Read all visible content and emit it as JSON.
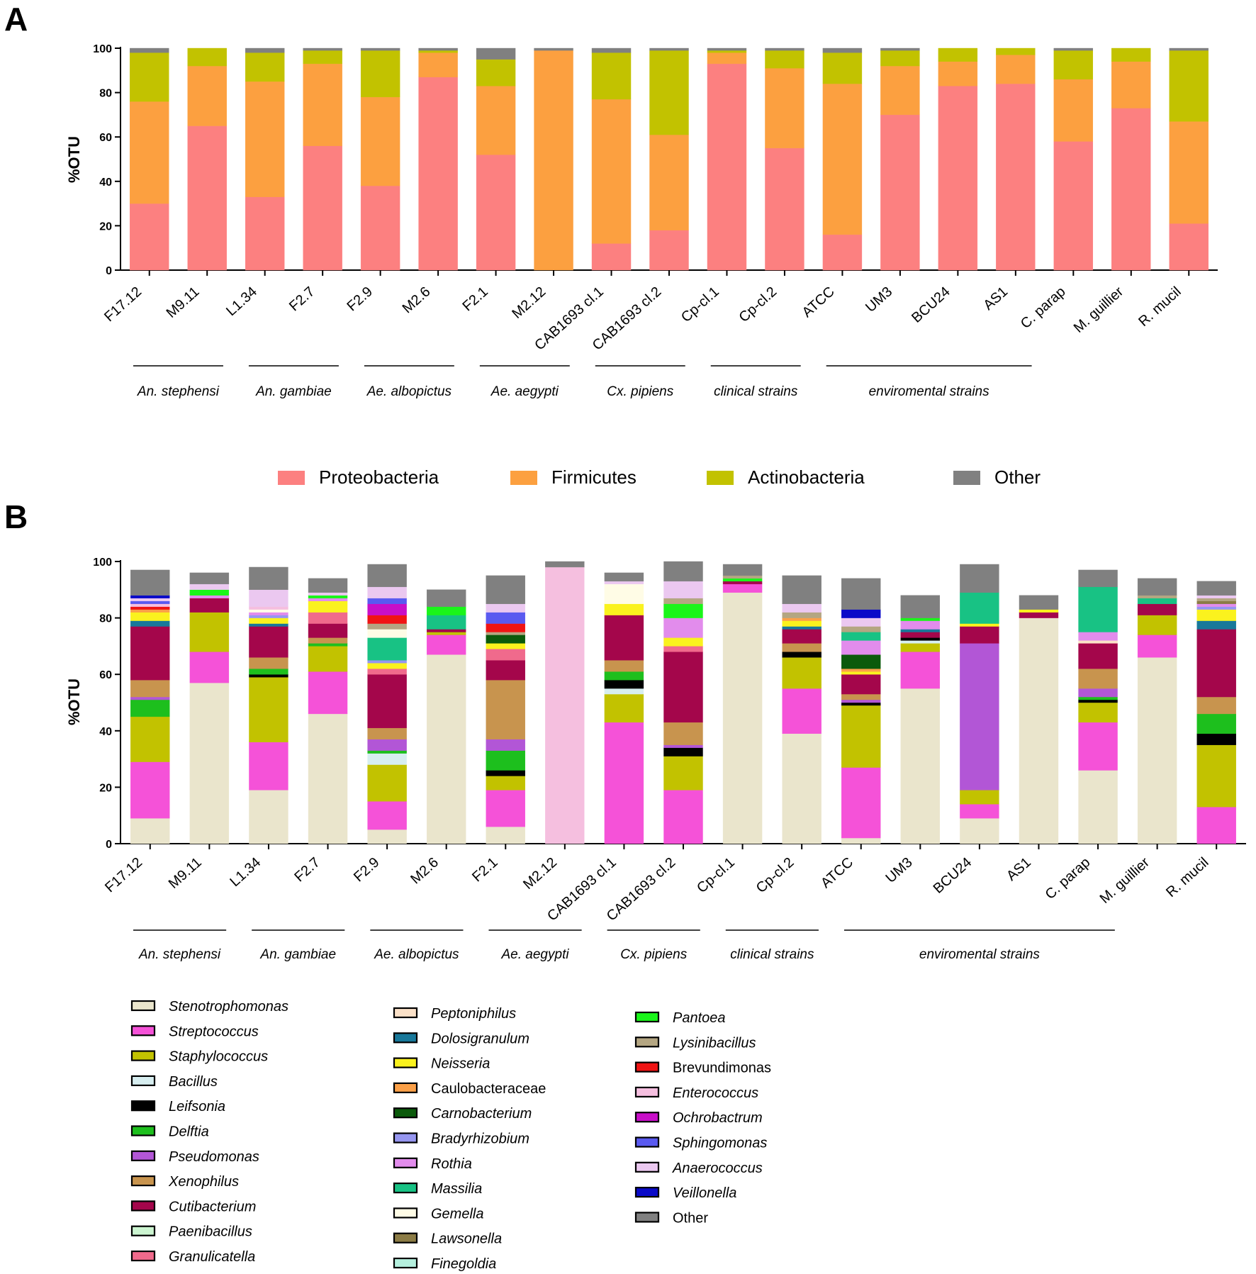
{
  "panel_a_label": "A",
  "panel_b_label": "B",
  "chart_data": [
    {
      "type": "bar",
      "stacked": true,
      "title": "",
      "ylabel": "%OTU",
      "ylim": [
        0,
        100
      ],
      "yticks": [
        "0",
        "20",
        "40",
        "60",
        "80",
        "100"
      ],
      "categories": [
        "F17.12",
        "M9.11",
        "L1.34",
        "F2.7",
        "F2.9",
        "M2.6",
        "F2.1",
        "M2.12",
        "CAB1693 cl.1",
        "CAB1693 cl.2",
        "Cp-cl.1",
        "Cp-cl.2",
        "ATCC",
        "UM3",
        "BCU24",
        "AS1",
        "C. parap",
        "M. guillier",
        "R. mucil"
      ],
      "groups": [
        {
          "label": "An. stephensi",
          "from": 0,
          "to": 1
        },
        {
          "label": "An. gambiae",
          "from": 2,
          "to": 3
        },
        {
          "label": "Ae. albopictus",
          "from": 4,
          "to": 5
        },
        {
          "label": "Ae. aegypti",
          "from": 6,
          "to": 7
        },
        {
          "label": "Cx. pipiens",
          "from": 8,
          "to": 9
        },
        {
          "label": "clinical strains",
          "from": 10,
          "to": 11
        },
        {
          "label": "enviromental strains",
          "from": 12,
          "to": 15
        }
      ],
      "series": [
        {
          "name": "Proteobacteria",
          "color": "#FC8080",
          "values": [
            30,
            65,
            33,
            56,
            38,
            87,
            52,
            0,
            12,
            18,
            93,
            55,
            16,
            70,
            83,
            84,
            58,
            73,
            21
          ]
        },
        {
          "name": "Firmicutes",
          "color": "#FCA040",
          "values": [
            46,
            27,
            52,
            37,
            40,
            11,
            31,
            99,
            65,
            43,
            5,
            36,
            68,
            22,
            11,
            13,
            28,
            21,
            46
          ]
        },
        {
          "name": "Actinobacteria",
          "color": "#C2C200",
          "values": [
            22,
            8,
            13,
            6,
            21,
            1,
            12,
            0,
            21,
            38,
            1,
            8,
            14,
            7,
            6,
            3,
            13,
            6,
            32
          ]
        },
        {
          "name": "Other",
          "color": "#808080",
          "values": [
            2,
            0,
            2,
            1,
            1,
            1,
            5,
            1,
            2,
            1,
            1,
            1,
            2,
            1,
            0,
            0,
            1,
            0,
            1
          ]
        }
      ]
    },
    {
      "type": "bar",
      "stacked": true,
      "title": "",
      "ylabel": "%OTU",
      "ylim": [
        0,
        100
      ],
      "yticks": [
        "0",
        "20",
        "40",
        "60",
        "80",
        "100"
      ],
      "categories": [
        "F17.12",
        "M9.11",
        "L1.34",
        "F2.7",
        "F2.9",
        "M2.6",
        "F2.1",
        "M2.12",
        "CAB1693 cl.1",
        "CAB1693 cl.2",
        "Cp-cl.1",
        "Cp-cl.2",
        "ATCC",
        "UM3",
        "BCU24",
        "AS1",
        "C. parap",
        "M. guillier",
        "R. mucil"
      ],
      "groups": [
        {
          "label": "An. stephensi",
          "from": 0,
          "to": 1
        },
        {
          "label": "An. gambiae",
          "from": 2,
          "to": 3
        },
        {
          "label": "Ae. albopictus",
          "from": 4,
          "to": 5
        },
        {
          "label": "Ae. aegypti",
          "from": 6,
          "to": 7
        },
        {
          "label": "Cx. pipiens",
          "from": 8,
          "to": 9
        },
        {
          "label": "clinical strains",
          "from": 10,
          "to": 11
        },
        {
          "label": "enviromental strains",
          "from": 12,
          "to": 16
        }
      ],
      "series": [
        {
          "name": "Stenotrophomonas",
          "color": "#EAE5CC",
          "values": [
            9,
            57,
            19,
            46,
            5,
            67,
            6,
            0,
            0,
            0,
            89,
            39,
            2,
            55,
            9,
            80,
            26,
            66,
            0
          ]
        },
        {
          "name": "Streptococcus",
          "color": "#F552D8",
          "values": [
            20,
            11,
            17,
            15,
            10,
            7,
            13,
            0,
            43,
            19,
            3,
            16,
            25,
            13,
            5,
            0,
            17,
            8,
            13
          ]
        },
        {
          "name": "Staphylococcus",
          "color": "#C2C200",
          "values": [
            16,
            14,
            23,
            9,
            13,
            1,
            5,
            0,
            10,
            12,
            0,
            11,
            22,
            3,
            5,
            0,
            7,
            7,
            22
          ]
        },
        {
          "name": "Bacillus",
          "color": "#D7EEF0",
          "values": [
            0,
            0,
            0,
            0,
            4,
            0,
            0,
            0,
            2,
            0,
            0,
            0,
            0,
            1,
            0,
            0,
            0,
            0,
            0
          ]
        },
        {
          "name": "Leifsonia",
          "color": "#000000",
          "values": [
            0,
            0,
            1,
            0,
            0,
            0,
            2,
            0,
            3,
            3,
            0,
            2,
            1,
            1,
            0,
            0,
            1,
            0,
            4
          ]
        },
        {
          "name": "Delftia",
          "color": "#1DBF1D",
          "values": [
            6,
            0,
            2,
            1,
            1,
            0,
            7,
            0,
            3,
            0,
            0,
            0,
            0,
            0,
            0,
            0,
            1,
            0,
            7
          ]
        },
        {
          "name": "Pseudomonas",
          "color": "#B256D6",
          "values": [
            1,
            0,
            0,
            0,
            4,
            0,
            4,
            0,
            0,
            1,
            0,
            0,
            1,
            0,
            52,
            0,
            3,
            0,
            0
          ]
        },
        {
          "name": "Xenophilus",
          "color": "#C8944E",
          "values": [
            6,
            0,
            4,
            2,
            4,
            0,
            21,
            0,
            4,
            8,
            0,
            3,
            2,
            0,
            0,
            0,
            7,
            0,
            6
          ]
        },
        {
          "name": "Cutibacterium",
          "color": "#A4064B",
          "values": [
            19,
            5,
            11,
            5,
            19,
            1,
            7,
            0,
            16,
            25,
            1,
            5,
            7,
            2,
            6,
            2,
            9,
            4,
            24
          ]
        },
        {
          "name": "Paenibacillus",
          "color": "#CCF5D1",
          "values": [
            0,
            0,
            0,
            0,
            0,
            0,
            0,
            0,
            0,
            0,
            0,
            0,
            0,
            0,
            0,
            0,
            0,
            0,
            0
          ]
        },
        {
          "name": "Granulicatella",
          "color": "#F06A8C",
          "values": [
            0,
            0,
            0,
            4,
            2,
            0,
            4,
            0,
            0,
            2,
            0,
            0,
            0,
            0,
            0,
            0,
            0,
            0,
            0
          ]
        },
        {
          "name": "Peptoniphilus",
          "color": "#FBE1C8",
          "values": [
            0,
            0,
            0,
            0,
            0,
            0,
            0,
            0,
            0,
            0,
            0,
            0,
            0,
            0,
            0,
            0,
            1,
            0,
            0
          ]
        },
        {
          "name": "Dolosigranulum",
          "color": "#18789A",
          "values": [
            2,
            0,
            1,
            0,
            0,
            0,
            0,
            0,
            0,
            0,
            0,
            1,
            0,
            1,
            0,
            0,
            0,
            0,
            3
          ]
        },
        {
          "name": "Neisseria",
          "color": "#FAF21E",
          "values": [
            3,
            0,
            2,
            4,
            2,
            0,
            2,
            0,
            4,
            3,
            0,
            2,
            1,
            0,
            1,
            1,
            0,
            0,
            4
          ]
        },
        {
          "name": "Caulobacteraceae",
          "color": "#FBA048",
          "values": [
            1,
            0,
            0,
            0,
            0,
            0,
            0,
            0,
            0,
            0,
            0,
            1,
            1,
            0,
            0,
            0,
            0,
            0,
            0
          ]
        },
        {
          "name": "Carnobacterium",
          "color": "#0B5A0B",
          "values": [
            0,
            0,
            0,
            0,
            0,
            0,
            3,
            0,
            0,
            0,
            0,
            0,
            5,
            0,
            0,
            0,
            0,
            0,
            0
          ]
        },
        {
          "name": "Bradyrhizobium",
          "color": "#9696F0",
          "values": [
            0,
            0,
            1,
            0,
            1,
            0,
            0,
            0,
            0,
            0,
            0,
            0,
            0,
            0,
            0,
            0,
            0,
            0,
            1
          ]
        },
        {
          "name": "Rothia",
          "color": "#E28CEC",
          "values": [
            0,
            1,
            1,
            1,
            0,
            0,
            0,
            0,
            0,
            7,
            0,
            0,
            5,
            3,
            0,
            0,
            3,
            0,
            1
          ]
        },
        {
          "name": "Massilia",
          "color": "#18C284",
          "values": [
            0,
            0,
            0,
            0,
            8,
            5,
            0,
            0,
            0,
            0,
            0,
            0,
            3,
            0,
            11,
            0,
            16,
            2,
            0
          ]
        },
        {
          "name": "Gemella",
          "color": "#FFFCE6",
          "values": [
            0,
            0,
            1,
            0,
            3,
            0,
            0,
            0,
            7,
            0,
            0,
            0,
            0,
            0,
            0,
            0,
            0,
            0,
            0
          ]
        },
        {
          "name": "Lawsonella",
          "color": "#8B7B45",
          "values": [
            0,
            0,
            0,
            0,
            0,
            0,
            0,
            0,
            0,
            0,
            0,
            0,
            0,
            0,
            0,
            0,
            0,
            0,
            1
          ]
        },
        {
          "name": "Finegoldia",
          "color": "#B5F0DE",
          "values": [
            0,
            0,
            0,
            0,
            0,
            0,
            0,
            0,
            0,
            0,
            0,
            0,
            0,
            0,
            0,
            0,
            0,
            0,
            0
          ]
        },
        {
          "name": "Pantoea",
          "color": "#1AF51A",
          "values": [
            0,
            2,
            0,
            1,
            0,
            3,
            0,
            0,
            0,
            5,
            1,
            0,
            0,
            1,
            0,
            0,
            0,
            0,
            0
          ]
        },
        {
          "name": "Lysinibacillus",
          "color": "#B4A682",
          "values": [
            0,
            0,
            0,
            0,
            2,
            0,
            1,
            0,
            0,
            2,
            1,
            2,
            2,
            0,
            0,
            0,
            0,
            1,
            1
          ]
        },
        {
          "name": "Brevundimonas",
          "color": "#F01414",
          "values": [
            1,
            0,
            0,
            0,
            3,
            0,
            3,
            0,
            0,
            0,
            0,
            0,
            0,
            0,
            0,
            0,
            0,
            0,
            0
          ]
        },
        {
          "name": "Enterococcus",
          "color": "#F5BFDF",
          "values": [
            1,
            0,
            1,
            0,
            0,
            0,
            0,
            98,
            0,
            0,
            0,
            0,
            0,
            0,
            0,
            0,
            0,
            0,
            0
          ]
        },
        {
          "name": "Ochrobactrum",
          "color": "#C80FC8",
          "values": [
            0,
            0,
            0,
            0,
            4,
            0,
            0,
            0,
            0,
            0,
            0,
            0,
            0,
            0,
            0,
            0,
            0,
            0,
            0
          ]
        },
        {
          "name": "Sphingomonas",
          "color": "#5A5AF0",
          "values": [
            1,
            0,
            0,
            0,
            2,
            0,
            4,
            0,
            0,
            0,
            0,
            0,
            0,
            0,
            0,
            0,
            0,
            0,
            0
          ]
        },
        {
          "name": "Anaerococcus",
          "color": "#EBC8F0",
          "values": [
            1,
            2,
            6,
            1,
            4,
            0,
            3,
            0,
            1,
            6,
            0,
            3,
            3,
            0,
            0,
            0,
            0,
            0,
            1
          ]
        },
        {
          "name": "Veillonella",
          "color": "#0A0AC8",
          "values": [
            1,
            0,
            0,
            0,
            0,
            0,
            0,
            0,
            0,
            0,
            0,
            0,
            3,
            0,
            0,
            0,
            0,
            0,
            0
          ]
        },
        {
          "name": "Other",
          "color": "#808080",
          "values": [
            9,
            4,
            8,
            5,
            8,
            6,
            10,
            2,
            3,
            7,
            4,
            10,
            11,
            8,
            10,
            5,
            6,
            6,
            5
          ]
        }
      ]
    }
  ]
}
